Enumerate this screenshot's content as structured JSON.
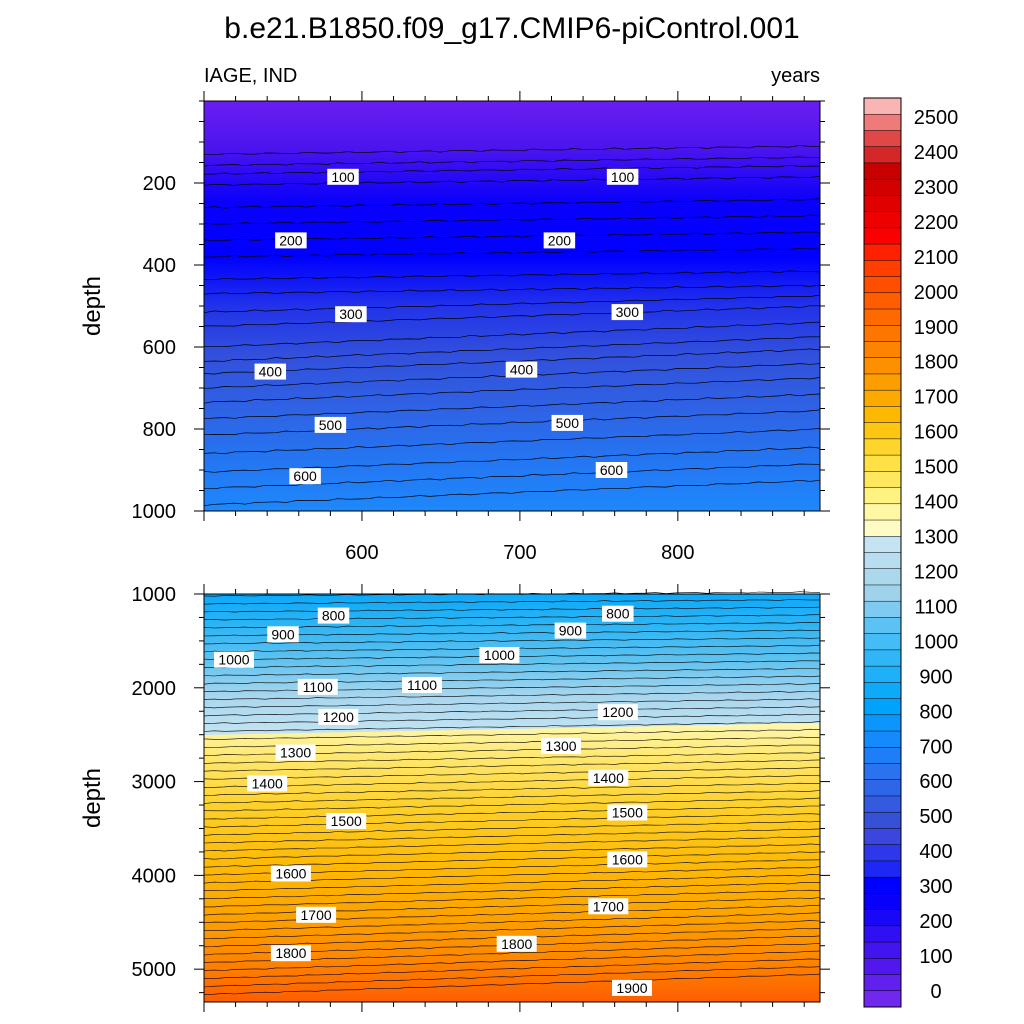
{
  "chart_data": [
    {
      "type": "contour",
      "panel": "top",
      "title": "b.e21.B1850.f09_g17.CMIP6-piControl.001",
      "left_label": "IAGE, IND",
      "right_label": "years",
      "xlabel": "",
      "ylabel": "depth",
      "xlim": [
        500,
        890
      ],
      "ylim": [
        1000,
        0
      ],
      "xticks": [
        600,
        700,
        800
      ],
      "yticks": [
        200,
        400,
        600,
        800,
        1000
      ],
      "contour_levels": [
        0,
        50,
        100,
        150,
        200,
        250,
        300,
        350,
        400,
        450,
        500,
        550,
        600,
        650
      ],
      "isolines": [
        {
          "depth_at_start": 130,
          "slope": -0.02
        },
        {
          "depth_at_start": 157,
          "slope": -0.02
        },
        {
          "depth_at_start": 178,
          "slope": -0.02
        },
        {
          "depth_at_start": 205,
          "slope": -0.02
        },
        {
          "depth_at_start": 260,
          "slope": -0.02
        },
        {
          "depth_at_start": 300,
          "slope": -0.02
        },
        {
          "depth_at_start": 340,
          "slope": -0.02
        },
        {
          "depth_at_start": 380,
          "slope": -0.02
        },
        {
          "depth_at_start": 435,
          "slope": -0.02
        },
        {
          "depth_at_start": 470,
          "slope": -0.02
        },
        {
          "depth_at_start": 515,
          "slope": -0.04
        },
        {
          "depth_at_start": 550,
          "slope": -0.05
        },
        {
          "depth_at_start": 600,
          "slope": -0.06
        },
        {
          "depth_at_start": 635,
          "slope": -0.06
        },
        {
          "depth_at_start": 665,
          "slope": -0.06
        },
        {
          "depth_at_start": 700,
          "slope": -0.06
        },
        {
          "depth_at_start": 735,
          "slope": -0.06
        },
        {
          "depth_at_start": 775,
          "slope": -0.06
        },
        {
          "depth_at_start": 815,
          "slope": -0.06
        },
        {
          "depth_at_start": 860,
          "slope": -0.06
        },
        {
          "depth_at_start": 905,
          "slope": -0.06
        },
        {
          "depth_at_start": 945,
          "slope": -0.06
        },
        {
          "depth_at_start": 985,
          "slope": -0.06
        }
      ],
      "contour_labels": [
        {
          "text": "100",
          "x": 588,
          "y": 185
        },
        {
          "text": "100",
          "x": 765,
          "y": 185
        },
        {
          "text": "200",
          "x": 555,
          "y": 340
        },
        {
          "text": "200",
          "x": 725,
          "y": 340
        },
        {
          "text": "300",
          "x": 593,
          "y": 520
        },
        {
          "text": "300",
          "x": 768,
          "y": 515
        },
        {
          "text": "400",
          "x": 542,
          "y": 660
        },
        {
          "text": "400",
          "x": 701,
          "y": 655
        },
        {
          "text": "500",
          "x": 580,
          "y": 790
        },
        {
          "text": "500",
          "x": 730,
          "y": 785
        },
        {
          "text": "600",
          "x": 564,
          "y": 915
        },
        {
          "text": "600",
          "x": 758,
          "y": 900
        }
      ]
    },
    {
      "type": "contour",
      "panel": "bottom",
      "xlabel": "",
      "ylabel": "depth",
      "xlim": [
        500,
        890
      ],
      "ylim": [
        5350,
        1000
      ],
      "xticks": [],
      "yticks": [
        1000,
        2000,
        3000,
        4000,
        5000
      ],
      "contour_levels": [
        700,
        750,
        800,
        850,
        900,
        950,
        1000,
        1050,
        1100,
        1150,
        1200,
        1250,
        1300,
        1350,
        1400,
        1450,
        1500,
        1550,
        1600,
        1650,
        1700,
        1750,
        1800,
        1850,
        1900,
        1950
      ],
      "contour_labels": [
        {
          "text": "800",
          "x": 582,
          "y": 1230
        },
        {
          "text": "800",
          "x": 762,
          "y": 1210
        },
        {
          "text": "900",
          "x": 550,
          "y": 1430
        },
        {
          "text": "900",
          "x": 732,
          "y": 1390
        },
        {
          "text": "1000",
          "x": 519,
          "y": 1700
        },
        {
          "text": "1000",
          "x": 687,
          "y": 1650
        },
        {
          "text": "1100",
          "x": 572,
          "y": 1990
        },
        {
          "text": "1100",
          "x": 638,
          "y": 1970
        },
        {
          "text": "1200",
          "x": 585,
          "y": 2310
        },
        {
          "text": "1200",
          "x": 762,
          "y": 2260
        },
        {
          "text": "1300",
          "x": 558,
          "y": 2690
        },
        {
          "text": "1300",
          "x": 726,
          "y": 2620
        },
        {
          "text": "1400",
          "x": 540,
          "y": 3020
        },
        {
          "text": "1400",
          "x": 756,
          "y": 2960
        },
        {
          "text": "1500",
          "x": 590,
          "y": 3420
        },
        {
          "text": "1500",
          "x": 768,
          "y": 3330
        },
        {
          "text": "1600",
          "x": 555,
          "y": 3980
        },
        {
          "text": "1600",
          "x": 768,
          "y": 3830
        },
        {
          "text": "1700",
          "x": 571,
          "y": 4420
        },
        {
          "text": "1700",
          "x": 756,
          "y": 4330
        },
        {
          "text": "1800",
          "x": 555,
          "y": 4830
        },
        {
          "text": "1800",
          "x": 698,
          "y": 4730
        },
        {
          "text": "1900",
          "x": 771,
          "y": 5200
        }
      ]
    },
    {
      "type": "colorbar",
      "labels": [
        "2500",
        "2400",
        "2300",
        "2200",
        "2100",
        "2000",
        "1900",
        "1800",
        "1700",
        "1600",
        "1500",
        "1400",
        "1300",
        "1200",
        "1100",
        "1000",
        "900",
        "800",
        "700",
        "600",
        "500",
        "400",
        "300",
        "200",
        "100",
        "0"
      ],
      "colors_top_to_bottom": [
        "#f9b4b4",
        "#ee7a7a",
        "#e04848",
        "#d42828",
        "#c80000",
        "#d20000",
        "#e00000",
        "#ee0000",
        "#fb0000",
        "#ff2000",
        "#ff3e00",
        "#fe4e00",
        "#fe5e00",
        "#fd6b00",
        "#fd7700",
        "#fd8400",
        "#fc9000",
        "#fc9e00",
        "#fcaa00",
        "#fdb800",
        "#fdc610",
        "#fed52a",
        "#fee144",
        "#ffe760",
        "#fff280",
        "#fff7a4",
        "#fffbc4",
        "#c5e3f2",
        "#b8ddf0",
        "#acd8ee",
        "#9fd3ec",
        "#7ecaf0",
        "#5cc2f4",
        "#44bcf5",
        "#30b6f6",
        "#1eb0f8",
        "#0eaafa",
        "#00a3fc",
        "#0a96fc",
        "#148afb",
        "#1e7ef8",
        "#2a72f0",
        "#2e66e8",
        "#345ae0",
        "#3650d6",
        "#3a46dc",
        "#2e38ea",
        "#1e28f4",
        "#0000ff",
        "#0800fa",
        "#1808f5",
        "#3010f2",
        "#4214ef",
        "#5018ee",
        "#6020ee",
        "#7028ee"
      ]
    }
  ]
}
